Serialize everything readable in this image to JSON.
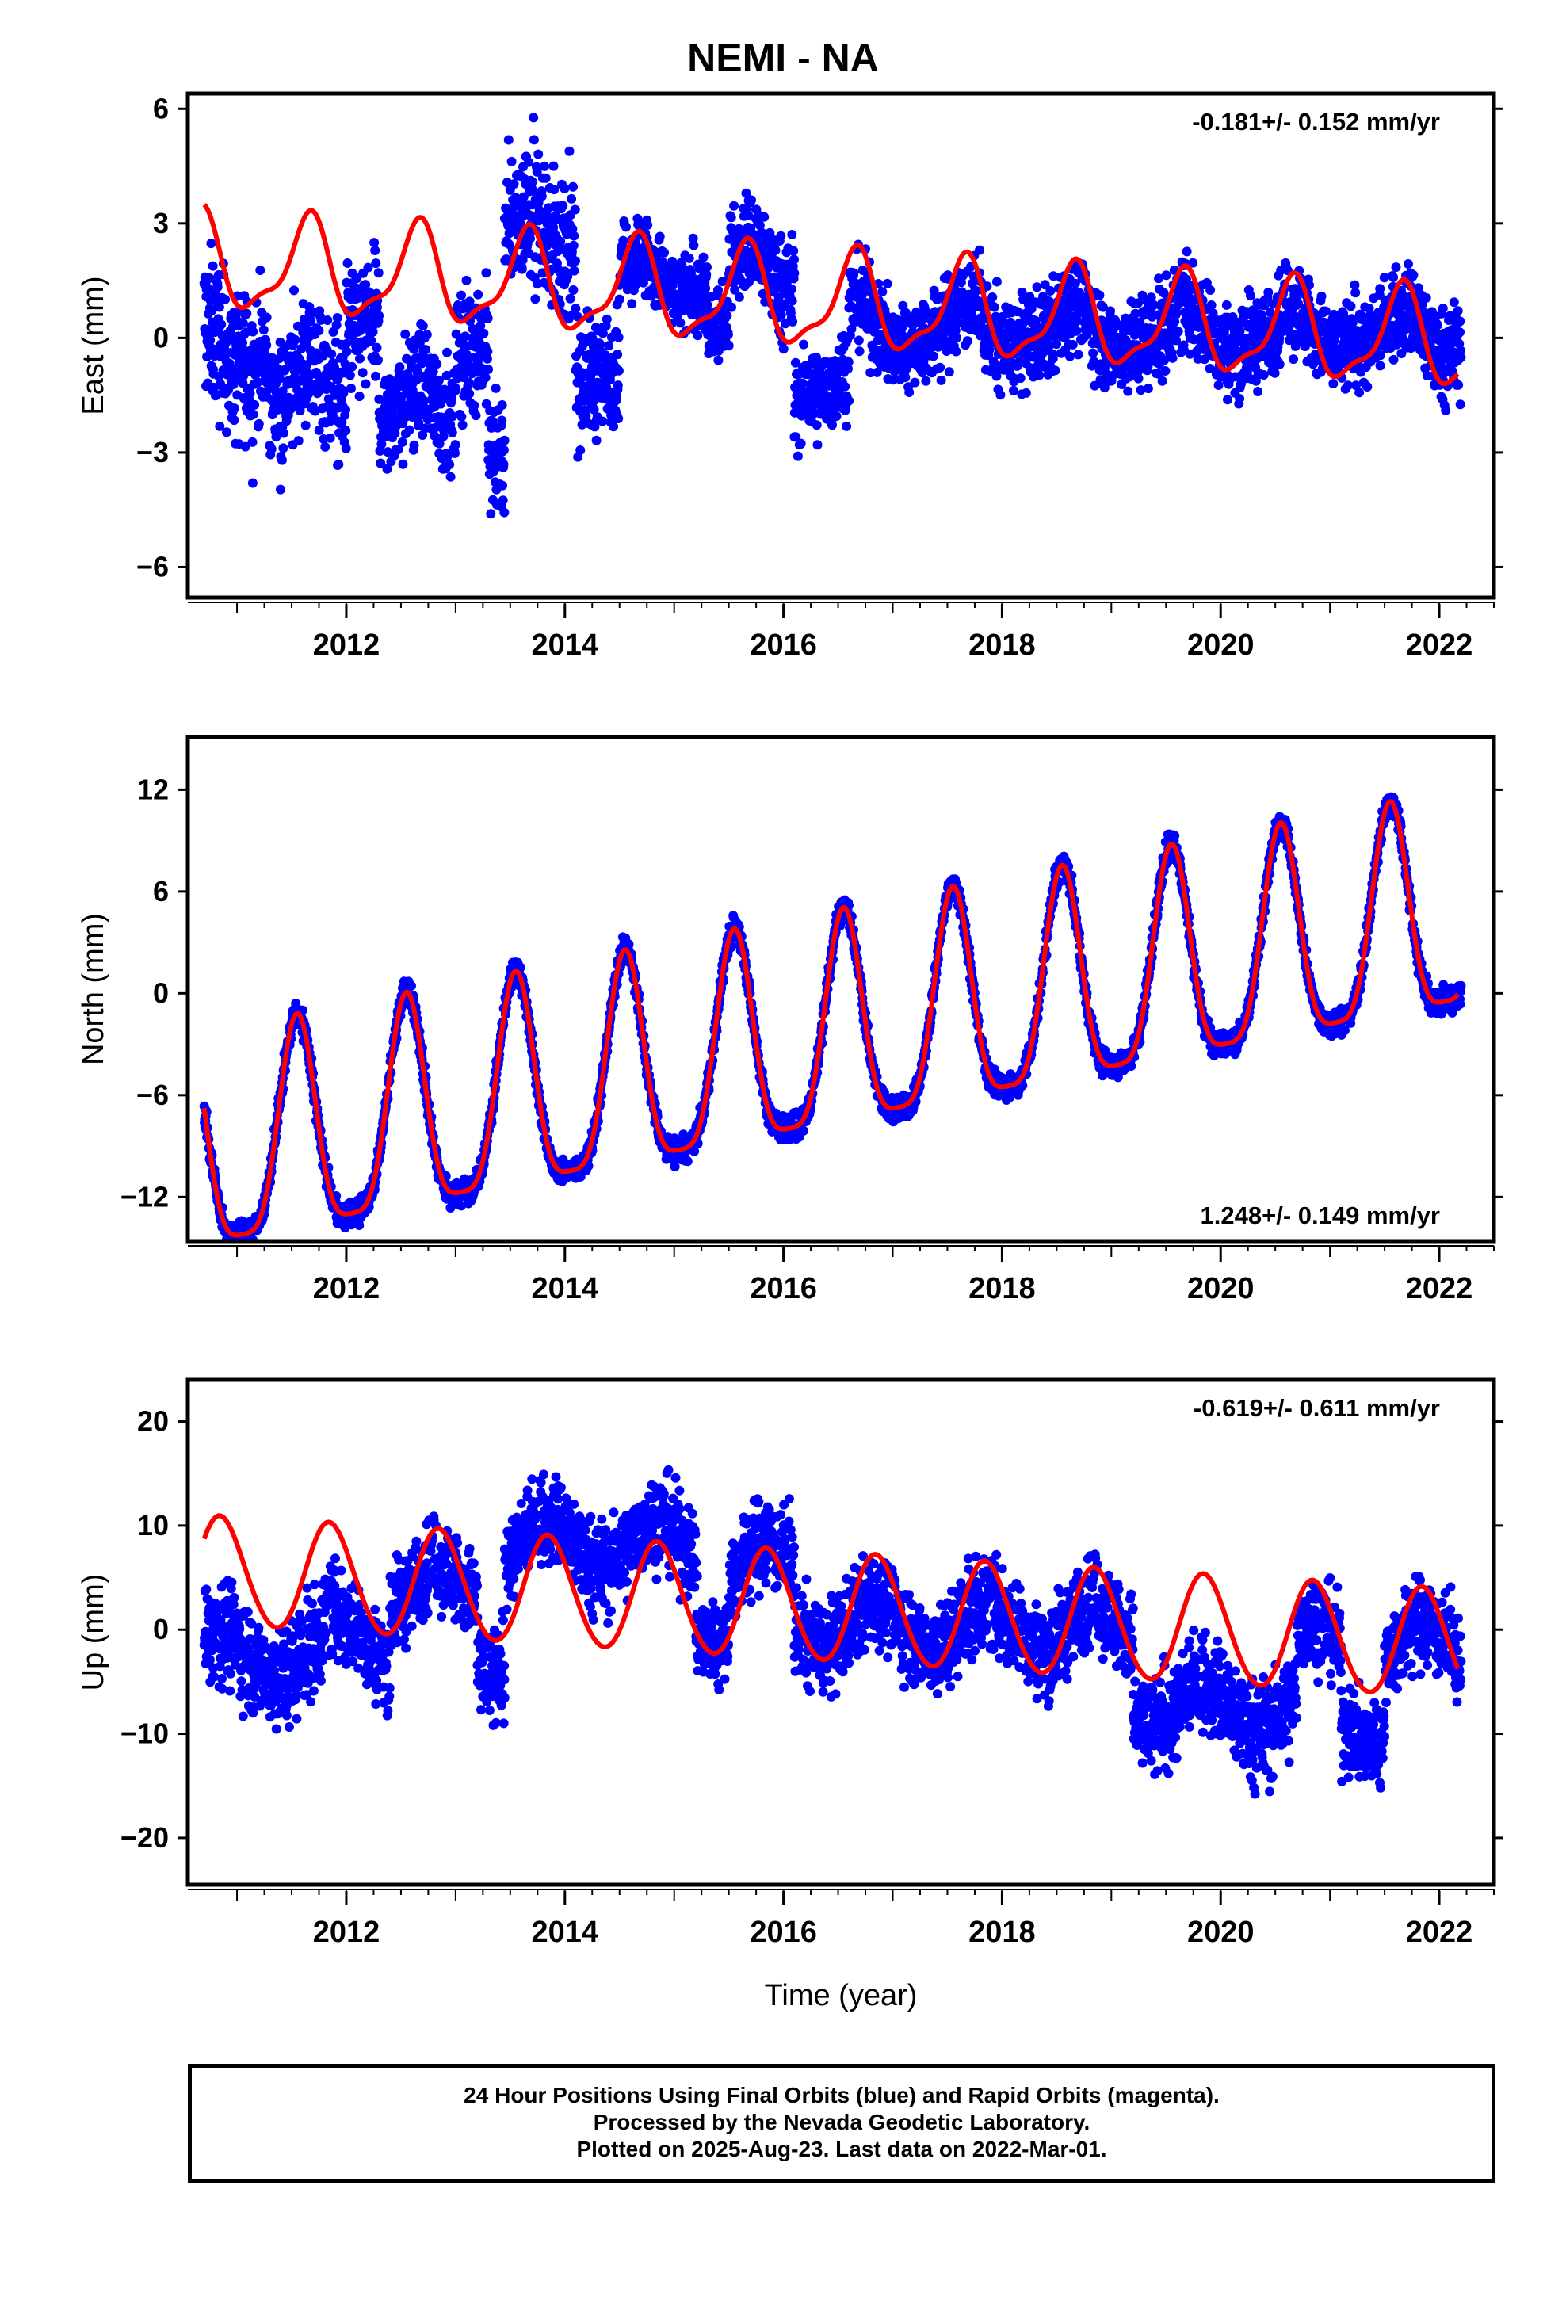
{
  "title": "NEMI - NA",
  "colors": {
    "points": "#0000ff",
    "fit": "#ff0000",
    "frame": "#000000"
  },
  "chart_data": [
    {
      "type": "scatter",
      "id": "east",
      "ylabel": "East (mm)",
      "xlabel": "",
      "xlim": [
        2010.55,
        2022.5
      ],
      "ylim": [
        -6.8,
        6.4
      ],
      "yticks": [
        6,
        3,
        0,
        -3,
        -6
      ],
      "xticks": [
        2012,
        2014,
        2016,
        2018,
        2020,
        2022
      ],
      "rate": "-0.181+/- 0.152 mm/yr",
      "rate_position": "top-right",
      "fit": {
        "offset": 0.9,
        "trend": -0.181,
        "annual_amp": 1.2,
        "annual_peak": 0.65,
        "semiannual_amp": 0.4,
        "semiannual_peak": 0.2
      },
      "scatter": [
        {
          "start": 2010.7,
          "end": 2011.3,
          "base": -0.5,
          "spread": 1.8
        },
        {
          "start": 2011.3,
          "end": 2012.0,
          "base": -1.5,
          "spread": 1.6
        },
        {
          "start": 2012.0,
          "end": 2012.3,
          "base": 0.5,
          "spread": 1.6
        },
        {
          "start": 2012.3,
          "end": 2013.0,
          "base": -2.0,
          "spread": 1.4
        },
        {
          "start": 2013.0,
          "end": 2013.3,
          "base": 0.0,
          "spread": 1.5
        },
        {
          "start": 2013.3,
          "end": 2013.45,
          "base": -3.0,
          "spread": 1.5
        },
        {
          "start": 2013.45,
          "end": 2014.1,
          "base": 2.6,
          "spread": 1.7
        },
        {
          "start": 2014.1,
          "end": 2014.5,
          "base": -0.8,
          "spread": 1.4
        },
        {
          "start": 2014.5,
          "end": 2015.3,
          "base": 1.5,
          "spread": 1.0
        },
        {
          "start": 2015.3,
          "end": 2015.5,
          "base": 0.3,
          "spread": 1.0
        },
        {
          "start": 2015.5,
          "end": 2016.1,
          "base": 1.8,
          "spread": 1.2
        },
        {
          "start": 2016.1,
          "end": 2016.6,
          "base": -1.2,
          "spread": 1.1
        },
        {
          "start": 2016.6,
          "end": 2022.2,
          "base": 0.3,
          "spread": 1.1
        }
      ]
    },
    {
      "type": "scatter",
      "id": "north",
      "ylabel": "North (mm)",
      "xlabel": "",
      "xlim": [
        2010.55,
        2022.5
      ],
      "ylim": [
        -14.6,
        15.1
      ],
      "yticks": [
        12,
        6,
        0,
        -6,
        -12
      ],
      "xticks": [
        2012,
        2014,
        2016,
        2018,
        2020,
        2022
      ],
      "rate": "1.248+/- 0.149 mm/yr",
      "rate_position": "bottom-right",
      "fit": {
        "offset": -2.7,
        "trend": 1.248,
        "annual_amp": 6.2,
        "annual_peak": 0.55,
        "semiannual_amp": 1.5,
        "semiannual_peak": 0.05
      },
      "scatter": [
        {
          "start": 2010.7,
          "end": 2022.2,
          "base": 0.0,
          "spread": 0.75
        }
      ]
    },
    {
      "type": "scatter",
      "id": "up",
      "ylabel": "Up (mm)",
      "xlabel": "Time (year)",
      "xlim": [
        2010.55,
        2022.5
      ],
      "ylim": [
        -24.5,
        24.0
      ],
      "yticks": [
        20,
        10,
        0,
        -10,
        -20
      ],
      "xticks": [
        2012,
        2014,
        2016,
        2018,
        2020,
        2022
      ],
      "rate": "-0.619+/- 0.611 mm/yr",
      "rate_position": "top-right",
      "fit": {
        "offset": 2.0,
        "trend": -0.619,
        "annual_amp": 5.2,
        "annual_peak": 0.85,
        "semiannual_amp": 0.3,
        "semiannual_peak": 0.3
      },
      "scatter": [
        {
          "start": 2010.7,
          "end": 2011.8,
          "base": -3.0,
          "spread": 4.5
        },
        {
          "start": 2011.8,
          "end": 2012.4,
          "base": -1.0,
          "spread": 4.0
        },
        {
          "start": 2012.4,
          "end": 2013.2,
          "base": 3.5,
          "spread": 4.0
        },
        {
          "start": 2013.2,
          "end": 2013.45,
          "base": -3.0,
          "spread": 4.5
        },
        {
          "start": 2013.45,
          "end": 2015.2,
          "base": 8.0,
          "spread": 4.0
        },
        {
          "start": 2015.2,
          "end": 2015.5,
          "base": 1.0,
          "spread": 4.0
        },
        {
          "start": 2015.5,
          "end": 2016.1,
          "base": 6.0,
          "spread": 4.0
        },
        {
          "start": 2016.1,
          "end": 2019.2,
          "base": 0.5,
          "spread": 4.0
        },
        {
          "start": 2019.2,
          "end": 2020.7,
          "base": -7.0,
          "spread": 4.5
        },
        {
          "start": 2020.7,
          "end": 2021.1,
          "base": -1.0,
          "spread": 4.0
        },
        {
          "start": 2021.1,
          "end": 2021.5,
          "base": -8.0,
          "spread": 4.0
        },
        {
          "start": 2021.5,
          "end": 2022.2,
          "base": -1.0,
          "spread": 4.0
        }
      ]
    }
  ],
  "footer": {
    "line1": "24 Hour Positions Using Final Orbits (blue) and Rapid Orbits (magenta).",
    "line2": "Processed by the Nevada Geodetic Laboratory.",
    "line3": "Plotted on 2025-Aug-23. Last data on 2022-Mar-01."
  }
}
